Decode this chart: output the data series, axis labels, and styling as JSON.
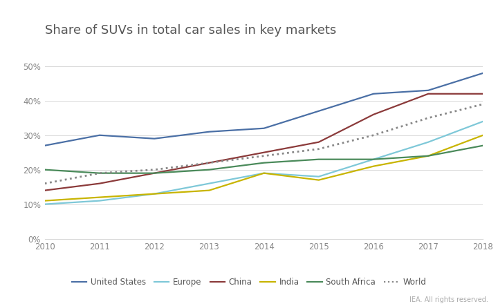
{
  "title": "Share of SUVs in total car sales in key markets",
  "years": [
    2010,
    2011,
    2012,
    2013,
    2014,
    2015,
    2016,
    2017,
    2018
  ],
  "series": {
    "United States": {
      "values": [
        27,
        30,
        29,
        31,
        32,
        37,
        42,
        43,
        48
      ],
      "color": "#4a6fa5",
      "linestyle": "-",
      "linewidth": 1.6
    },
    "Europe": {
      "values": [
        10,
        11,
        13,
        16,
        19,
        18,
        23,
        28,
        34
      ],
      "color": "#7ec8d8",
      "linestyle": "-",
      "linewidth": 1.6
    },
    "China": {
      "values": [
        14,
        16,
        19,
        22,
        25,
        28,
        36,
        42,
        42
      ],
      "color": "#8b3a3a",
      "linestyle": "-",
      "linewidth": 1.6
    },
    "India": {
      "values": [
        11,
        12,
        13,
        14,
        19,
        17,
        21,
        24,
        30
      ],
      "color": "#c8b400",
      "linestyle": "-",
      "linewidth": 1.6
    },
    "South Africa": {
      "values": [
        20,
        19,
        19,
        20,
        22,
        23,
        23,
        24,
        27
      ],
      "color": "#4a8a5a",
      "linestyle": "-",
      "linewidth": 1.6
    },
    "World": {
      "values": [
        16,
        19,
        20,
        22,
        24,
        26,
        30,
        35,
        39
      ],
      "color": "#888888",
      "linestyle": ":",
      "linewidth": 2.0
    }
  },
  "ylim": [
    0,
    55
  ],
  "yticks": [
    0,
    10,
    20,
    30,
    40,
    50
  ],
  "ytick_labels": [
    "0%",
    "10%",
    "20%",
    "30%",
    "40%",
    "50%"
  ],
  "background_color": "#ffffff",
  "plot_area_color": "#ffffff",
  "grid_color": "#d8d8d8",
  "legend_order": [
    "United States",
    "Europe",
    "China",
    "India",
    "South Africa",
    "World"
  ],
  "copyright_text": "IEA. All rights reserved.",
  "title_fontsize": 13,
  "legend_fontsize": 8.5,
  "tick_fontsize": 8.5
}
